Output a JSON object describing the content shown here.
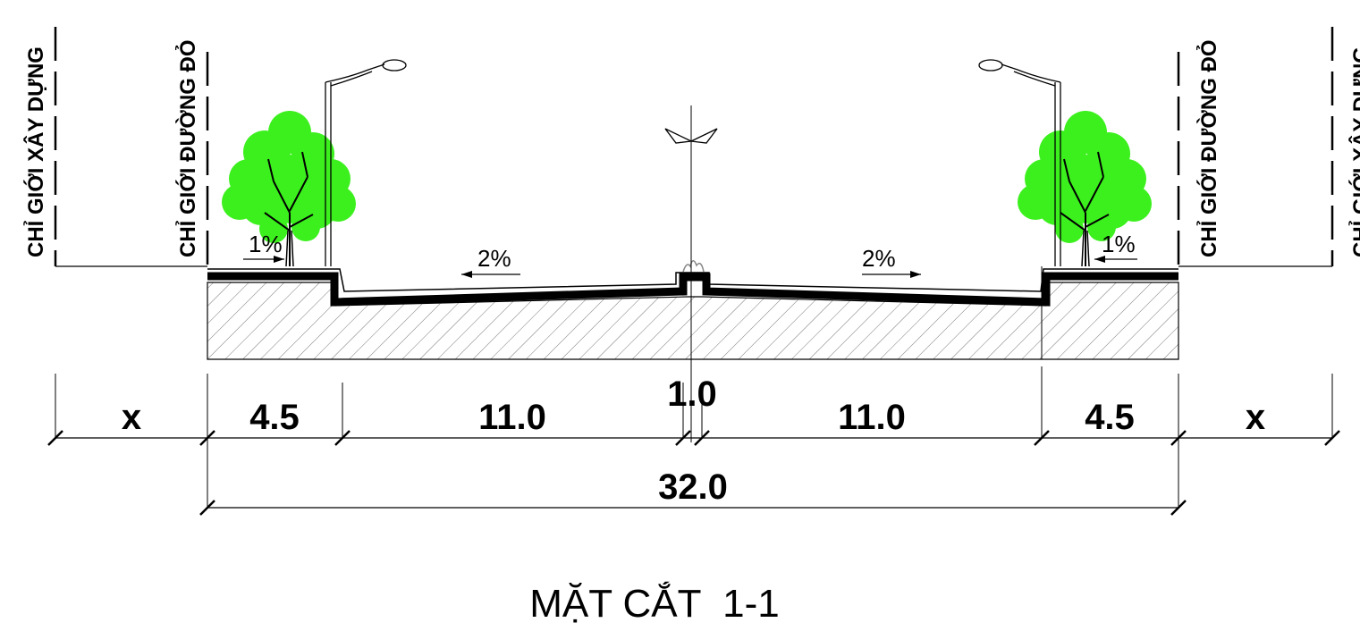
{
  "section_title": "MẶT CẮT  1-1",
  "boundary_labels": {
    "building_line": "CHỈ GIỚI XÂY DỰNG",
    "red_line": "CHỈ GIỚI ĐƯỜNG ĐỎ"
  },
  "slopes": {
    "sidewalk_left": "1%",
    "carriageway_left": "2%",
    "carriageway_right": "2%",
    "sidewalk_right": "1%"
  },
  "dimensions": {
    "setback_left": "x",
    "sidewalk_left": "4.5",
    "carriageway_left": "11.0",
    "median": "1.0",
    "carriageway_right": "11.0",
    "sidewalk_right": "4.5",
    "setback_right": "x",
    "total": "32.0"
  },
  "colors": {
    "line": "#000000",
    "tree_foliage": "#3cf01e",
    "tree_trunk": "#000000"
  }
}
